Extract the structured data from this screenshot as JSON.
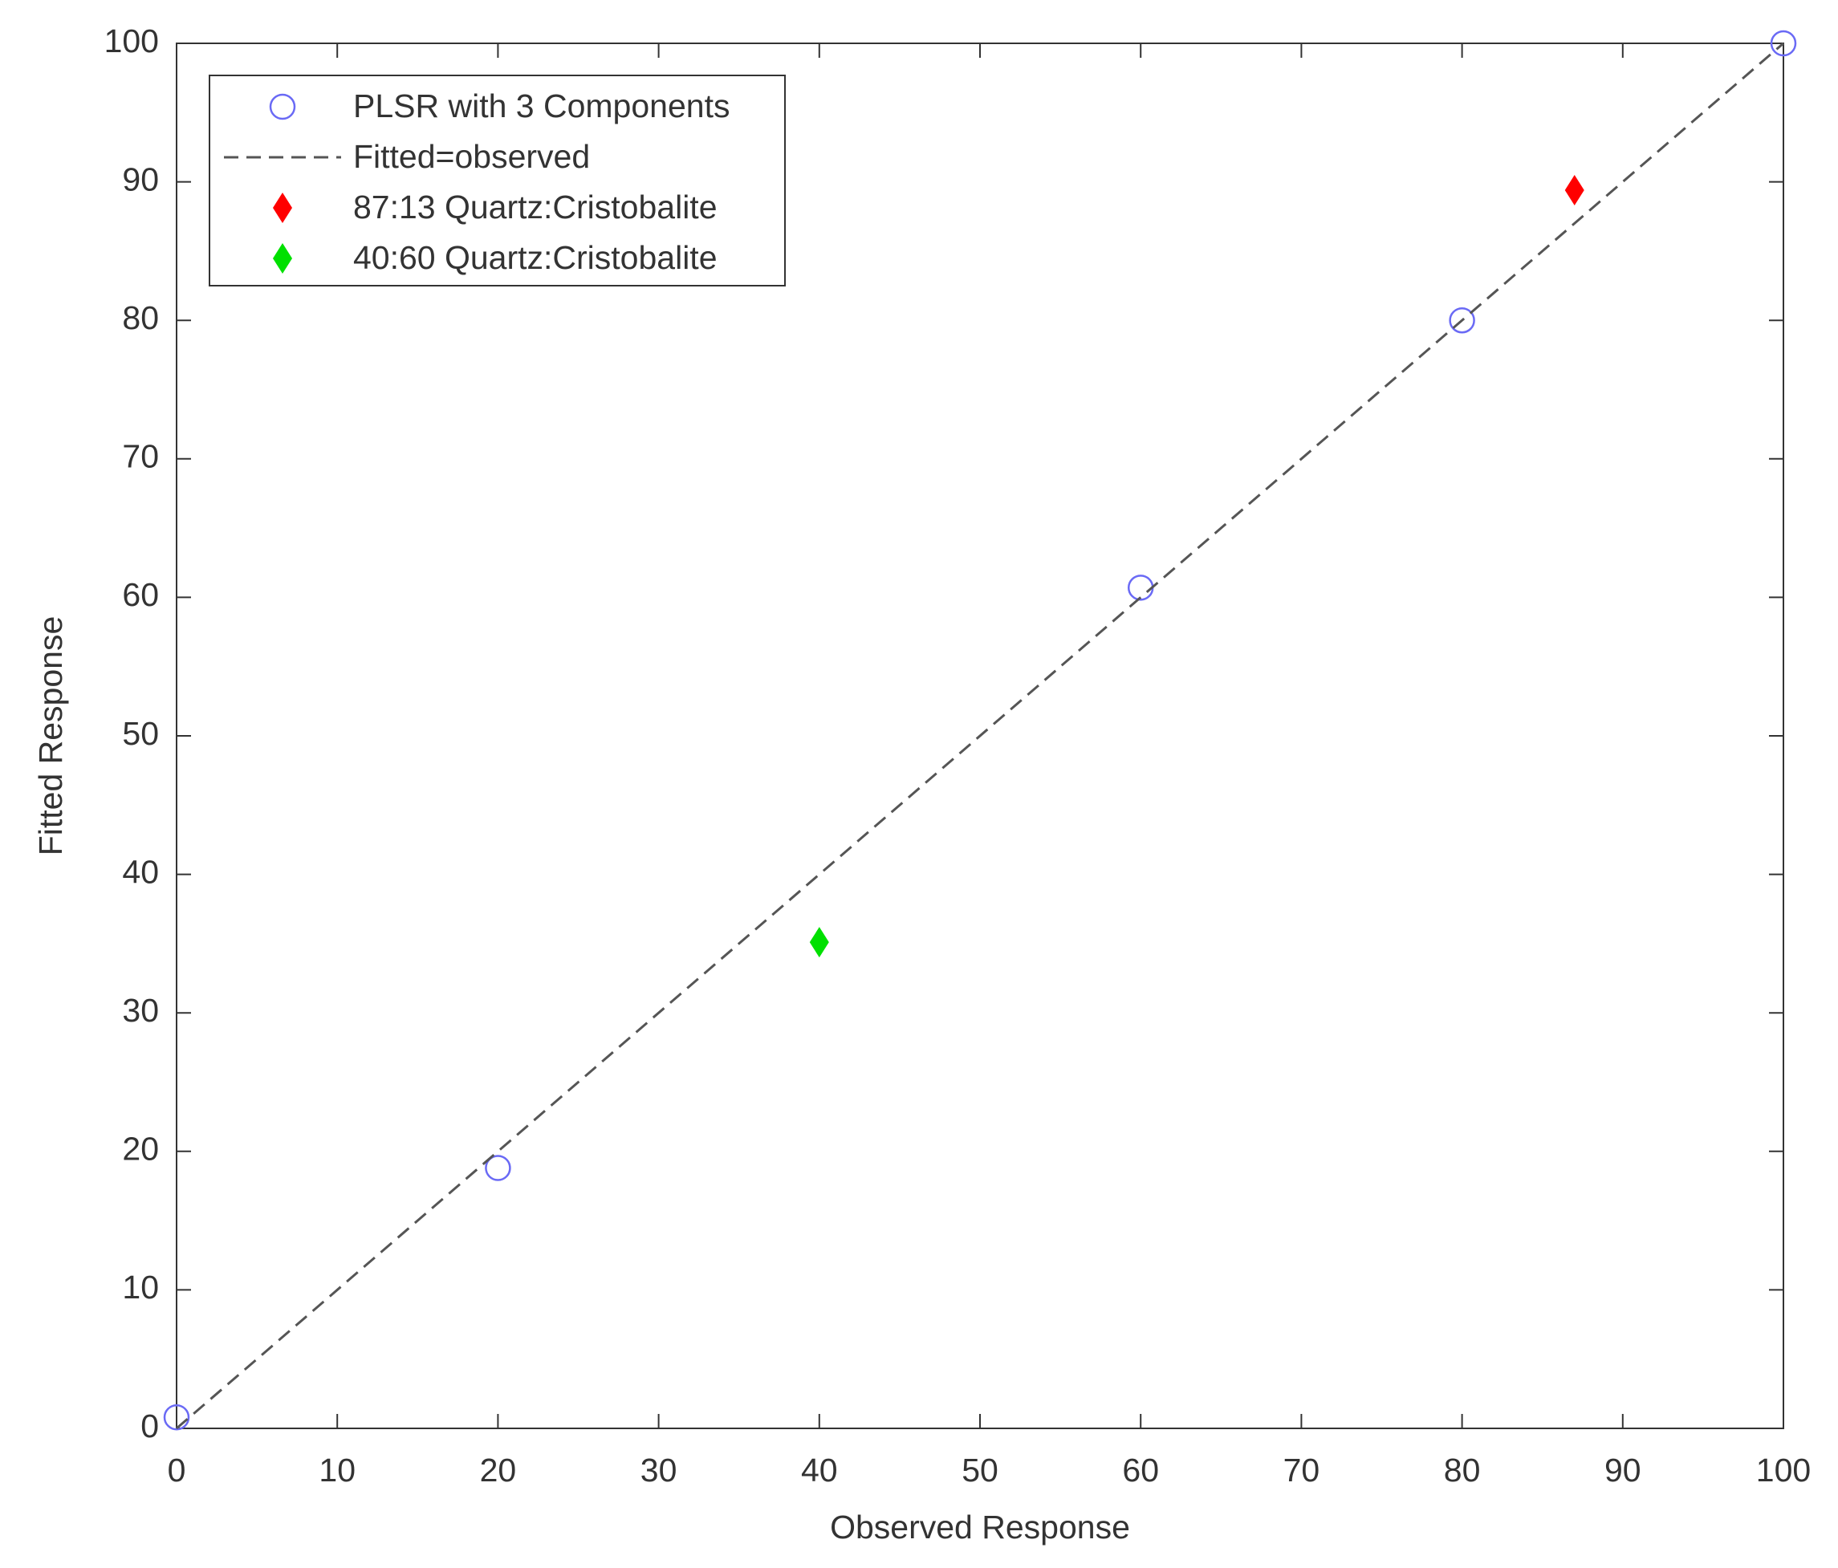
{
  "chart_data": {
    "type": "scatter",
    "xlabel": "Observed Response",
    "ylabel": "Fitted Response",
    "xlim": [
      0,
      100
    ],
    "ylim": [
      0,
      100
    ],
    "xticks": [
      0,
      10,
      20,
      30,
      40,
      50,
      60,
      70,
      80,
      90,
      100
    ],
    "yticks": [
      0,
      10,
      20,
      30,
      40,
      50,
      60,
      70,
      80,
      90,
      100
    ],
    "grid": false,
    "legend": "upper left",
    "series": [
      {
        "name": "PLSR with 3 Components",
        "color": "#6a6af5",
        "marker": "circle",
        "x": [
          0,
          20,
          60,
          80,
          100
        ],
        "values": [
          0.8,
          18.8,
          60.7,
          80,
          100
        ]
      },
      {
        "name": "Fitted=observed",
        "color": "#555555",
        "line": "dashed",
        "x": [
          0,
          100
        ],
        "values": [
          0,
          100
        ]
      },
      {
        "name": "87:13 Quartz:Cristobalite",
        "color": "#ff0000",
        "marker": "diamond",
        "x": [
          87
        ],
        "values": [
          89.4
        ]
      },
      {
        "name": "40:60 Quartz:Cristobalite",
        "color": "#00e000",
        "marker": "diamond",
        "x": [
          40
        ],
        "values": [
          35.1
        ]
      }
    ]
  }
}
